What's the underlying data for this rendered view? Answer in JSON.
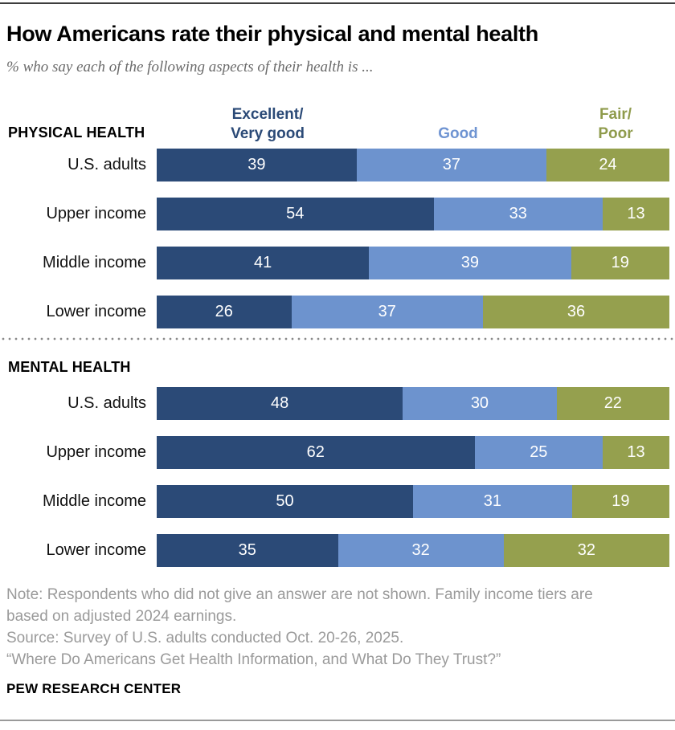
{
  "header": {
    "title": "How Americans rate their physical and mental health",
    "subtitle": "% who say each of the following aspects of their health is ..."
  },
  "legend": [
    {
      "name": "excellent-very-good",
      "line1": "Excellent/",
      "line2": "Very good",
      "color": "#2B4A77"
    },
    {
      "name": "good",
      "line1": "",
      "line2": "Good",
      "color": "#6F94D2"
    },
    {
      "name": "fair-poor",
      "line1": "Fair/",
      "line2": "Poor",
      "color": "#8F9B4C"
    }
  ],
  "chart_data": {
    "type": "bar",
    "orientation": "horizontal",
    "stacked": true,
    "xlim": [
      0,
      100
    ],
    "grid": false,
    "legend_position": "top",
    "series_names": [
      "Excellent/Very good",
      "Good",
      "Fair/Poor"
    ],
    "series_colors": [
      "#2B4A77",
      "#6D93CE",
      "#95A04E"
    ],
    "value_label_color": "#ffffff",
    "sections": [
      {
        "label": "PHYSICAL HEALTH",
        "rows": [
          {
            "label": "U.S. adults",
            "values": [
              39,
              37,
              24
            ]
          },
          {
            "label": "Upper income",
            "values": [
              54,
              33,
              13
            ]
          },
          {
            "label": "Middle income",
            "values": [
              41,
              39,
              19
            ]
          },
          {
            "label": "Lower income",
            "values": [
              26,
              37,
              36
            ]
          }
        ]
      },
      {
        "label": "MENTAL HEALTH",
        "rows": [
          {
            "label": "U.S. adults",
            "values": [
              48,
              30,
              22
            ]
          },
          {
            "label": "Upper income",
            "values": [
              62,
              25,
              13
            ]
          },
          {
            "label": "Middle income",
            "values": [
              50,
              31,
              19
            ]
          },
          {
            "label": "Lower income",
            "values": [
              35,
              32,
              32
            ]
          }
        ]
      }
    ]
  },
  "footer": {
    "note": "Note: Respondents who did not give an answer are not shown. Family income tiers are based on adjusted 2024 earnings.",
    "source": "Source: Survey of U.S. adults conducted Oct. 20-26, 2025.",
    "quote": "“Where Do Americans Get Health Information, and What Do They Trust?”",
    "brand": "PEW RESEARCH CENTER"
  }
}
